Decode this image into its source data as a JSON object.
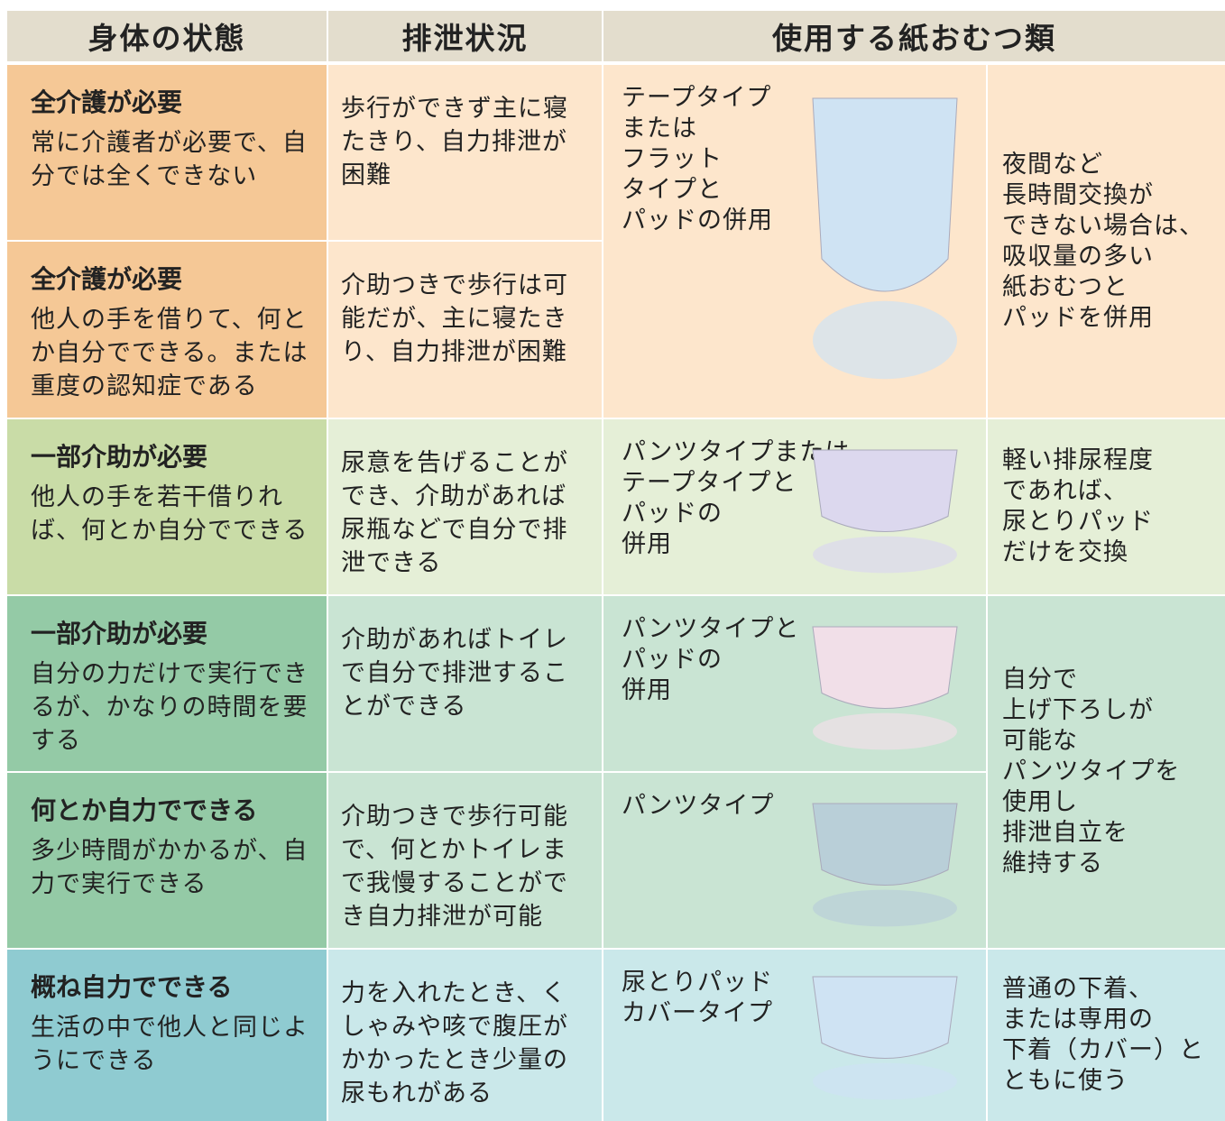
{
  "table": {
    "headers": [
      "身体の状態",
      "排泄状況",
      "使用する紙おむつ類"
    ],
    "groups": [
      {
        "product": [
          "テープタイプ",
          "または",
          "フラット",
          "タイプと",
          "パッドの併用"
        ],
        "note": [
          "夜間など",
          "長時間交換が",
          "できない場合は、",
          "吸収量の多い",
          "紙おむつと",
          "パッドを併用"
        ],
        "rows": [
          {
            "state_title": "全介護が必要",
            "state_text": "常に介護者が必要で、自分では全くできない",
            "excretion": "歩行ができず主に寝たきり、自力排泄が困難"
          },
          {
            "state_title": "全介護が必要",
            "state_text": "他人の手を借りて、何とか自分でできる。または重度の認知症である",
            "excretion": "介助つきで歩行は可能だが、主に寝たきり、自力排泄が困難"
          }
        ]
      },
      {
        "note": [
          "軽い排尿程度",
          "であれば、",
          "尿とりパッド",
          "だけを交換"
        ],
        "rows": [
          {
            "state_title": "一部介助が必要",
            "state_text": "他人の手を若干借りれば、何とか自分でできる",
            "excretion": "尿意を告げることができ、介助があれば尿瓶などで自分で排泄できる",
            "product": [
              "パンツタイプまたは",
              "テープタイプと",
              "パッドの",
              "併用"
            ]
          }
        ]
      },
      {
        "note": [
          "自分で",
          "上げ下ろしが",
          "可能な",
          "パンツタイプを",
          "使用し",
          "排泄自立を",
          "維持する"
        ],
        "rows": [
          {
            "state_title": "一部介助が必要",
            "state_text": "自分の力だけで実行できるが、かなりの時間を要する",
            "excretion": "介助があればトイレで自分で排泄することができる",
            "product": [
              "パンツタイプと",
              "パッドの",
              "併用"
            ]
          },
          {
            "state_title": "何とか自力でできる",
            "state_text": "多少時間がかかるが、自力で実行できる",
            "excretion": "介助つきで歩行可能で、何とかトイレまで我慢することができ自力排泄が可能",
            "product": [
              "パンツタイプ"
            ]
          }
        ]
      },
      {
        "note": [
          "普通の下着、",
          "または専用の",
          "下着（カバー）と",
          "ともに使う"
        ],
        "rows": [
          {
            "state_title": "概ね自力でできる",
            "state_text": "生活の中で他人と同じようにできる",
            "excretion": "力を入れたとき、くしゃみや咳で腹圧がかかったとき少量の尿もれがある",
            "product": [
              "尿とりパッド",
              "カバータイプ"
            ]
          }
        ]
      }
    ]
  }
}
